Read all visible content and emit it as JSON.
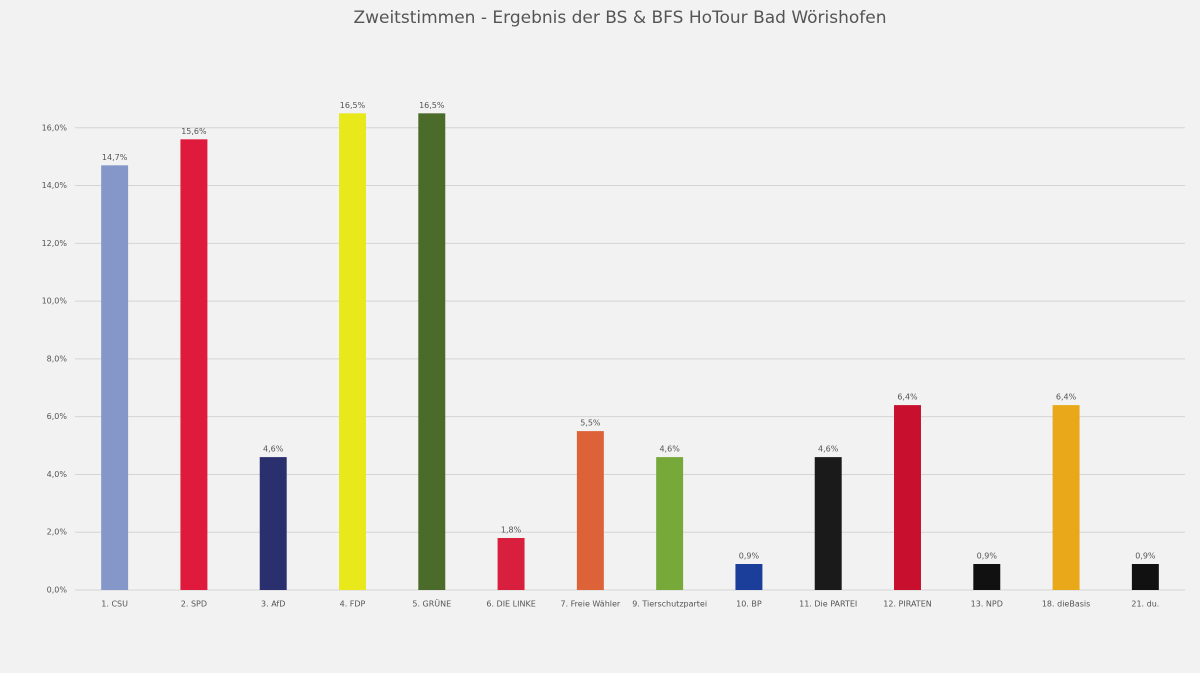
{
  "chart_data": {
    "type": "bar",
    "title": "Zweitstimmen - Ergebnis der BS & BFS HoTour Bad Wörishofen",
    "categories": [
      "1. CSU",
      "2. SPD",
      "3. AfD",
      "4. FDP",
      "5. GRÜNE",
      "6. DIE LINKE",
      "7. Freie Wähler",
      "9. Tierschutzpartei",
      "10. BP",
      "11. Die PARTEI",
      "12. PIRATEN",
      "13. NPD",
      "18. dieBasis",
      "21. du."
    ],
    "values": [
      14.7,
      15.6,
      4.6,
      16.5,
      16.5,
      1.8,
      5.5,
      4.6,
      0.9,
      4.6,
      6.4,
      0.9,
      6.4,
      0.9
    ],
    "value_labels": [
      "14,7%",
      "15,6%",
      "4,6%",
      "16,5%",
      "16,5%",
      "1,8%",
      "5,5%",
      "4,6%",
      "0,9%",
      "4,6%",
      "6,4%",
      "0,9%",
      "6,4%",
      "0,9%"
    ],
    "colors": [
      "#8497c8",
      "#e01a3c",
      "#2a2f6e",
      "#e8e81a",
      "#4a6b2a",
      "#d8203e",
      "#dd6238",
      "#76a83a",
      "#1a3e9a",
      "#1a1a1a",
      "#c8102e",
      "#111111",
      "#e8a81a",
      "#111111"
    ],
    "ylim": [
      0,
      18
    ],
    "yticks": [
      {
        "value": 0,
        "label": "0,0%"
      },
      {
        "value": 2,
        "label": "2,0%"
      },
      {
        "value": 4,
        "label": "4,0%"
      },
      {
        "value": 6,
        "label": "6,0%"
      },
      {
        "value": 8,
        "label": "8,0%"
      },
      {
        "value": 10,
        "label": "10,0%"
      },
      {
        "value": 12,
        "label": "12,0%"
      },
      {
        "value": 14,
        "label": "14,0%"
      },
      {
        "value": 16,
        "label": "16,0%"
      }
    ],
    "grid": true
  }
}
